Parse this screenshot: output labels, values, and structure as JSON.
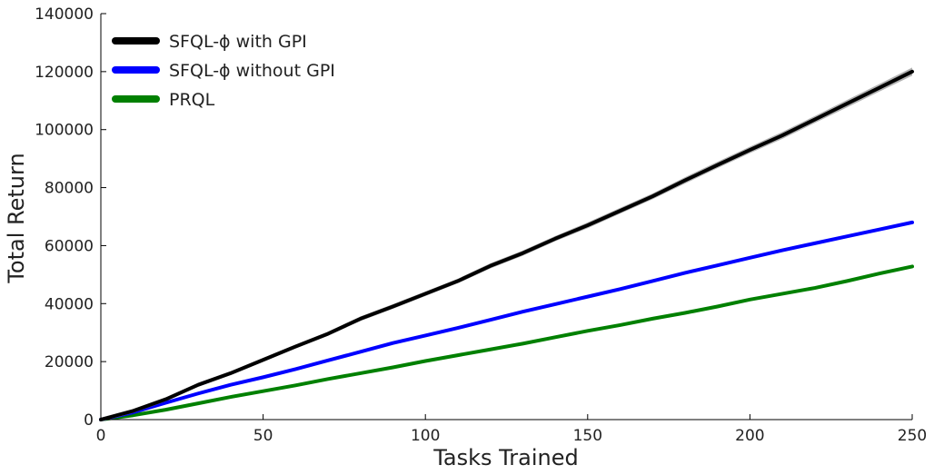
{
  "chart_data": {
    "type": "line",
    "xlabel": "Tasks Trained",
    "ylabel": "Total Return",
    "xlim": [
      0,
      250
    ],
    "ylim": [
      0,
      140000
    ],
    "xticks": [
      0,
      50,
      100,
      150,
      200,
      250
    ],
    "yticks": [
      0,
      20000,
      40000,
      60000,
      80000,
      100000,
      120000,
      140000
    ],
    "grid": false,
    "legend": "top-left",
    "x": [
      0,
      10,
      20,
      30,
      40,
      50,
      60,
      70,
      80,
      90,
      100,
      110,
      120,
      130,
      140,
      150,
      160,
      170,
      180,
      190,
      200,
      210,
      220,
      230,
      240,
      250
    ],
    "series": [
      {
        "name": "SFQL-ϕ with GPI",
        "color": "#000000",
        "band_color": "#aaaaaa",
        "values": [
          0,
          3000,
          7000,
          12000,
          16000,
          20600,
          25200,
          29600,
          34800,
          39000,
          43400,
          47800,
          53000,
          57400,
          62400,
          67000,
          72000,
          77000,
          82500,
          87800,
          93000,
          98000,
          103500,
          109000,
          114500,
          120000
        ],
        "band": [
          700,
          700,
          700,
          700,
          700,
          700,
          700,
          700,
          800,
          800,
          800,
          800,
          900,
          900,
          900,
          1000,
          1000,
          1000,
          1100,
          1100,
          1100,
          1200,
          1200,
          1300,
          1300,
          1400
        ]
      },
      {
        "name": "SFQL-ϕ without GPI",
        "color": "#0000ff",
        "values": [
          0,
          2500,
          5800,
          9000,
          12000,
          14600,
          17400,
          20400,
          23400,
          26400,
          29000,
          31600,
          34400,
          37200,
          39800,
          42400,
          45000,
          47800,
          50600,
          53200,
          55800,
          58400,
          60800,
          63200,
          65600,
          68000
        ]
      },
      {
        "name": "PRQL",
        "color": "#008000",
        "values": [
          0,
          1500,
          3400,
          5600,
          7800,
          9800,
          11800,
          14000,
          16000,
          18000,
          20200,
          22200,
          24200,
          26200,
          28400,
          30600,
          32600,
          34800,
          36800,
          39000,
          41400,
          43400,
          45400,
          47800,
          50400,
          52800
        ]
      }
    ]
  }
}
